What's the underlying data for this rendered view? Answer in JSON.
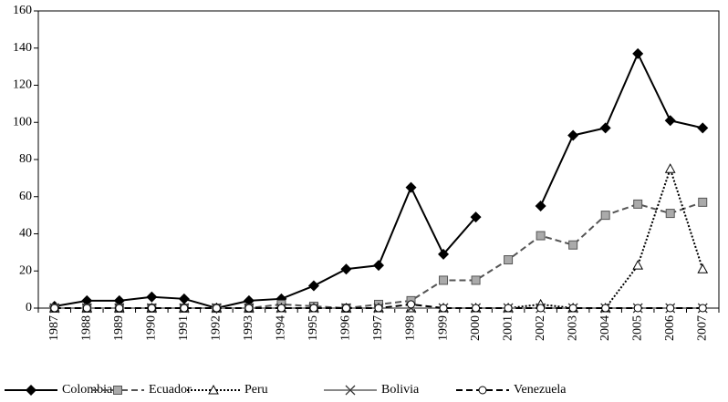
{
  "chart_data": {
    "type": "line",
    "categories": [
      "1987",
      "1988",
      "1989",
      "1990",
      "1991",
      "1992",
      "1993",
      "1994",
      "1995",
      "1996",
      "1997",
      "1998",
      "1999",
      "2000",
      "2001",
      "2002",
      "2003",
      "2004",
      "2005",
      "2006",
      "2007"
    ],
    "ylim": [
      0,
      160
    ],
    "yticks": [
      0,
      20,
      40,
      60,
      80,
      100,
      120,
      140,
      160
    ],
    "legend": "bottom",
    "series": [
      {
        "name": "Colombia",
        "color": "#000000",
        "line_style": "solid",
        "marker": "diamond",
        "values": [
          1,
          4,
          4,
          6,
          5,
          0,
          4,
          5,
          12,
          21,
          23,
          65,
          29,
          49,
          null,
          55,
          93,
          97,
          137,
          101,
          97
        ]
      },
      {
        "name": "Ecuador",
        "color": "#555555",
        "line_style": "dashed",
        "marker": "square",
        "values": [
          0,
          0,
          0,
          0,
          0,
          0,
          0,
          2,
          1,
          0,
          2,
          4,
          15,
          15,
          26,
          39,
          34,
          50,
          56,
          51,
          57
        ]
      },
      {
        "name": "Peru",
        "color": "#000000",
        "line_style": "dotted",
        "marker": "triangle",
        "values": [
          0,
          0,
          0,
          0,
          0,
          0,
          0,
          0,
          0,
          0,
          0,
          0,
          0,
          0,
          0,
          2,
          0,
          0,
          23,
          75,
          21
        ]
      },
      {
        "name": "Bolivia",
        "color": "#888888",
        "line_style": "solid",
        "marker": "x",
        "values": [
          0,
          0,
          0,
          0,
          0,
          0,
          0,
          0,
          0,
          0,
          0,
          0,
          0,
          0,
          0,
          0,
          0,
          0,
          0,
          0,
          0
        ]
      },
      {
        "name": "Venezuela",
        "color": "#000000",
        "line_style": "dashed",
        "marker": "circle",
        "values": [
          0,
          0,
          0,
          0,
          0,
          0,
          0,
          0,
          0,
          0,
          0,
          2,
          0,
          0,
          0,
          0,
          0,
          0,
          0,
          0,
          0
        ]
      }
    ]
  }
}
